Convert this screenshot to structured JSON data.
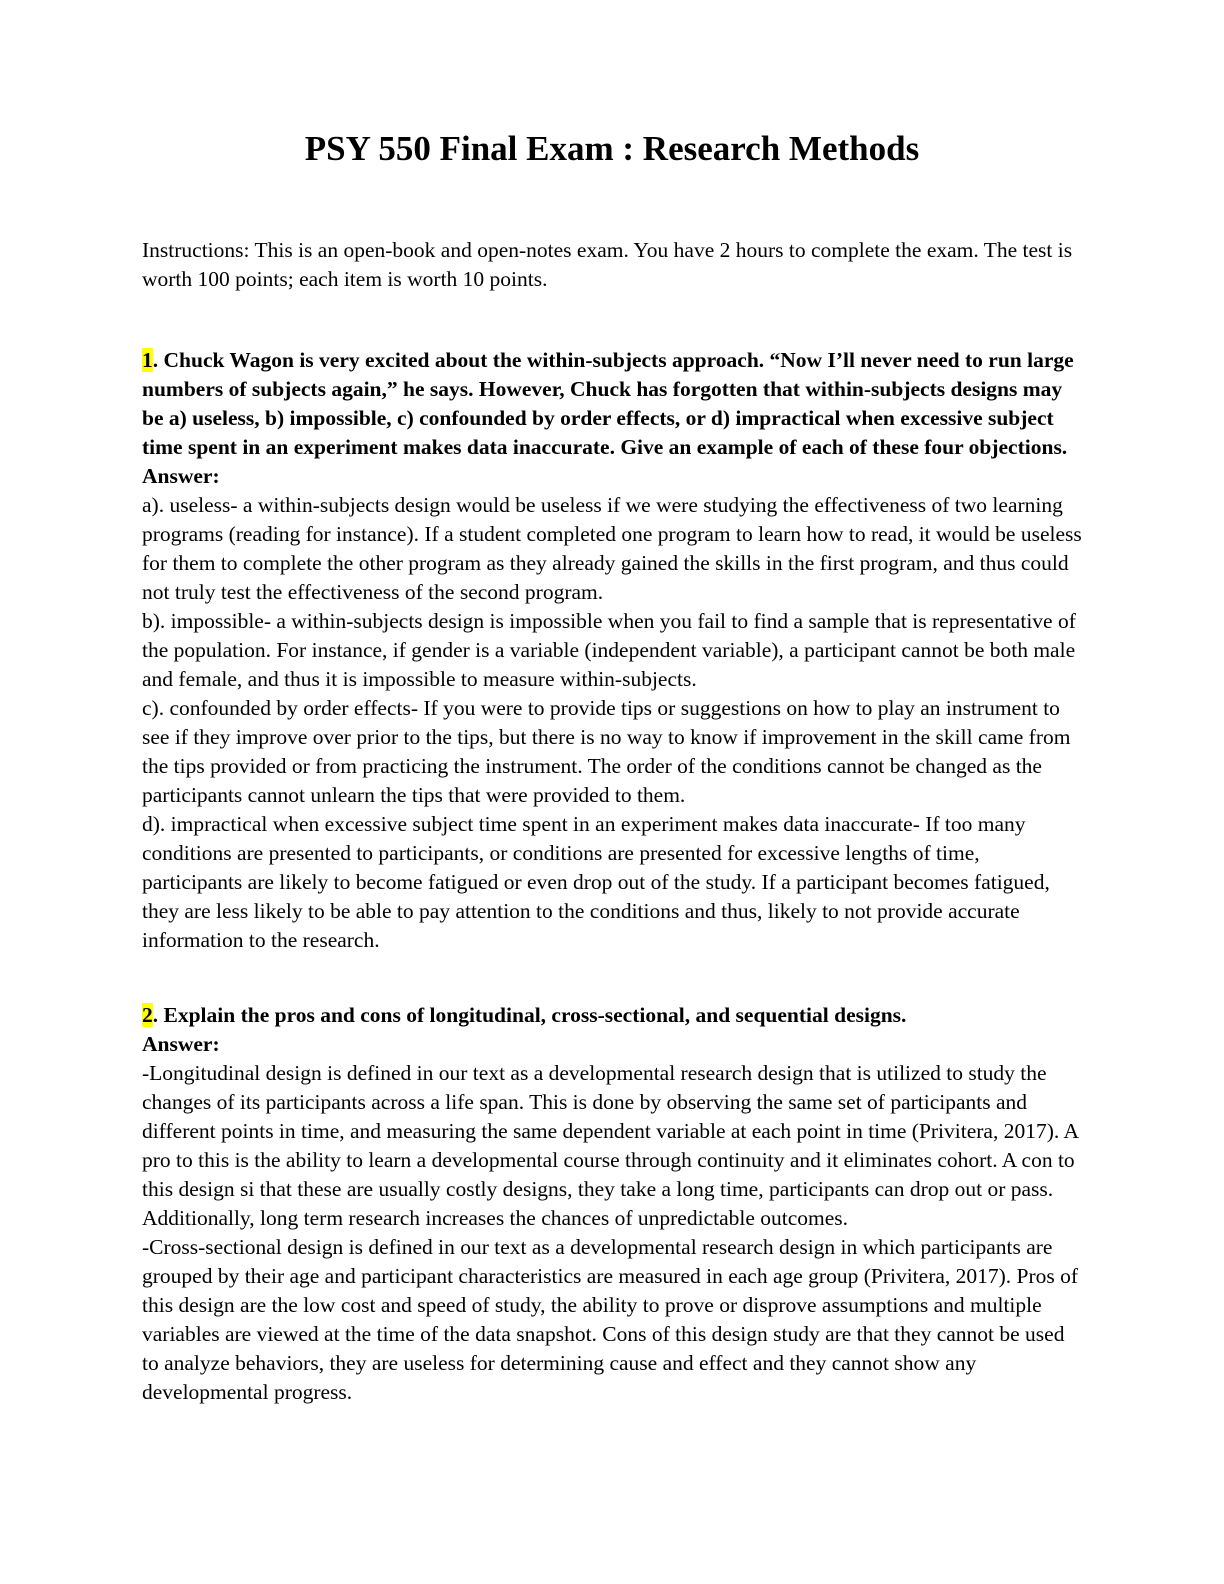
{
  "title": "PSY 550 Final Exam : Research Methods",
  "instructions": "Instructions: This is an open-book and open-notes exam. You have 2 hours to complete the exam. The test is worth 100 points; each item is worth 10 points.",
  "highlight_color": "#ffff00",
  "questions": [
    {
      "number": "1",
      "number_suffix": ". ",
      "text": "Chuck Wagon is very excited about the within-subjects approach. “Now I’ll never need to run large numbers of subjects again,” he says. However, Chuck has forgotten that within-subjects designs may be a) useless, b) impossible, c) confounded by order effects, or d) impractical when excessive subject time spent in an experiment makes data inaccurate. Give an example of each of these four objections.",
      "answer_label": "Answer:",
      "answer_paragraphs": [
        "a). useless- a within-subjects design would be useless if we were studying the effectiveness of two learning programs (reading for instance). If a student completed one program to learn how to read, it would be useless for them to complete the other program as they already gained the skills in the first program, and thus could not truly test the effectiveness of the second program.",
        "b). impossible- a within-subjects design is impossible when you fail to find a sample that is representative of the population. For instance, if gender is a variable (independent variable), a participant cannot be both male and female, and thus it is impossible to measure within-subjects.",
        "c). confounded by order effects- If you were to provide tips or suggestions on how to play an instrument to see if they improve over prior to the tips, but there is no way to know if improvement in the skill came from the tips provided or from practicing the instrument. The order of the conditions cannot be changed as the participants cannot unlearn the tips that were provided to them.",
        "d). impractical when excessive subject time spent in an experiment makes data inaccurate- If too many conditions are presented to participants, or conditions are presented for excessive lengths of time, participants are likely to become fatigued or even drop out of the study. If a participant becomes fatigued, they are less likely to be able to pay attention to the conditions and thus, likely to not provide accurate information to the research."
      ]
    },
    {
      "number": "2",
      "number_suffix": ". ",
      "text": "Explain the pros and cons of longitudinal, cross-sectional, and sequential designs.",
      "answer_label": "Answer:",
      "answer_paragraphs": [
        "-Longitudinal design is defined in our text as a developmental research design that is utilized to study the changes of its participants across a life span. This is done by observing the same set of participants and different points in time, and measuring the same dependent variable at each point in time (Privitera, 2017).  A pro to this is the ability to learn a developmental course through continuity and it eliminates cohort. A con to this design si that these are usually costly designs, they take a long time, participants can drop out or pass.  Additionally, long term research increases the chances of unpredictable outcomes.",
        "-Cross-sectional design is defined in our text as a developmental research design in which participants are grouped by their age and participant characteristics are measured in each age group (Privitera, 2017). Pros of this design are the low cost and speed of study, the ability to prove or disprove assumptions and multiple variables are viewed at the time of the data snapshot. Cons of this design study are that they cannot be used to analyze behaviors, they are useless for determining cause and effect and they cannot show any developmental progress."
      ]
    }
  ]
}
